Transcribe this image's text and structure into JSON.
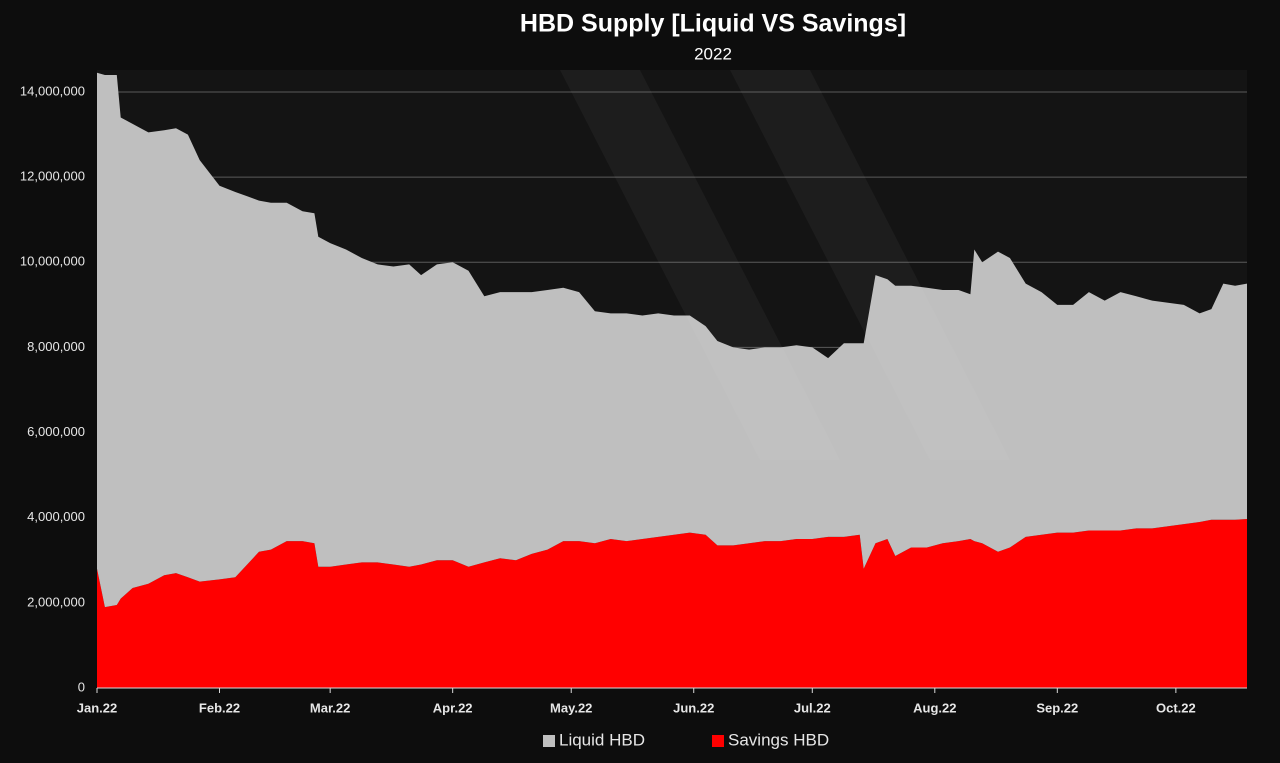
{
  "chart_data": {
    "type": "stacked_area",
    "title": "HBD Supply [Liquid VS Savings]",
    "subtitle": "2022",
    "x": [
      0,
      2,
      5,
      6,
      9,
      13,
      17,
      20,
      23,
      26,
      31,
      35,
      38,
      41,
      44,
      48,
      52,
      55,
      56,
      59,
      63,
      67,
      71,
      75,
      79,
      82,
      86,
      90,
      94,
      98,
      102,
      106,
      110,
      114,
      118,
      122,
      126,
      130,
      134,
      138,
      142,
      146,
      150,
      154,
      157,
      161,
      165,
      169,
      173,
      177,
      181,
      185,
      189,
      193,
      194,
      197,
      200,
      202,
      206,
      210,
      214,
      218,
      221,
      222,
      224,
      228,
      231,
      235,
      239,
      243,
      247,
      251,
      255,
      259,
      263,
      267,
      271,
      275,
      279,
      282,
      285,
      288,
      291
    ],
    "xlim": [
      0,
      291
    ],
    "xticks": [
      {
        "value": 0,
        "label": "Jan.22"
      },
      {
        "value": 31,
        "label": "Feb.22"
      },
      {
        "value": 59,
        "label": "Mar.22"
      },
      {
        "value": 90,
        "label": "Apr.22"
      },
      {
        "value": 120,
        "label": "May.22"
      },
      {
        "value": 151,
        "label": "Jun.22"
      },
      {
        "value": 181,
        "label": "Jul.22"
      },
      {
        "value": 212,
        "label": "Aug.22"
      },
      {
        "value": 243,
        "label": "Sep.22"
      },
      {
        "value": 273,
        "label": "Oct.22"
      }
    ],
    "ylim": [
      0,
      14500000
    ],
    "yticks": [
      0,
      {
        "value": 2000000,
        "label": "2,000,000"
      },
      {
        "value": 4000000,
        "label": "4,000,000"
      },
      {
        "value": 6000000,
        "label": "6,000,000"
      },
      {
        "value": 8000000,
        "label": "8,000,000"
      },
      {
        "value": 10000000,
        "label": "10,000,000"
      },
      {
        "value": 12000000,
        "label": "12,000,000"
      },
      {
        "value": 14000000,
        "label": "14,000,000"
      }
    ],
    "grid": true,
    "legend": "bottom",
    "series": [
      {
        "name": "Liquid HBD",
        "color": "#bfbfbf",
        "values": [
          11650000,
          12500000,
          12450000,
          11300000,
          10900000,
          10600000,
          10450000,
          10450000,
          10400000,
          9900000,
          9250000,
          9050000,
          8650000,
          8250000,
          8150000,
          7950000,
          7750000,
          7750000,
          7750000,
          7600000,
          7400000,
          7150000,
          7000000,
          7000000,
          7100000,
          6800000,
          6950000,
          7000000,
          6950000,
          6250000,
          6250000,
          6300000,
          6150000,
          6100000,
          5950000,
          5850000,
          5450000,
          5300000,
          5350000,
          5250000,
          5250000,
          5150000,
          5100000,
          4900000,
          4800000,
          4650000,
          4550000,
          4550000,
          4550000,
          4550000,
          4500000,
          4200000,
          4550000,
          4500000,
          5300000,
          6300000,
          6100000,
          6350000,
          6150000,
          6100000,
          5950000,
          5900000,
          5750000,
          6850000,
          6600000,
          7050000,
          6800000,
          5950000,
          5700000,
          5350000,
          5350000,
          5600000,
          5400000,
          5600000,
          5450000,
          5350000,
          5250000,
          5150000,
          4900000,
          4950000,
          5550000,
          5500000,
          5530000
        ]
      },
      {
        "name": "Savings HBD",
        "color": "#ff0000",
        "values": [
          2800000,
          1900000,
          1950000,
          2100000,
          2350000,
          2450000,
          2650000,
          2700000,
          2600000,
          2500000,
          2550000,
          2600000,
          2900000,
          3200000,
          3250000,
          3450000,
          3450000,
          3400000,
          2850000,
          2850000,
          2900000,
          2950000,
          2950000,
          2900000,
          2850000,
          2900000,
          3000000,
          3000000,
          2850000,
          2950000,
          3050000,
          3000000,
          3150000,
          3250000,
          3450000,
          3450000,
          3400000,
          3500000,
          3450000,
          3500000,
          3550000,
          3600000,
          3650000,
          3600000,
          3350000,
          3350000,
          3400000,
          3450000,
          3450000,
          3500000,
          3500000,
          3550000,
          3550000,
          3600000,
          2800000,
          3400000,
          3500000,
          3100000,
          3300000,
          3300000,
          3400000,
          3450000,
          3500000,
          3450000,
          3400000,
          3200000,
          3300000,
          3550000,
          3600000,
          3650000,
          3650000,
          3700000,
          3700000,
          3700000,
          3750000,
          3750000,
          3800000,
          3850000,
          3900000,
          3950000,
          3950000,
          3950000,
          3970000
        ]
      }
    ]
  }
}
